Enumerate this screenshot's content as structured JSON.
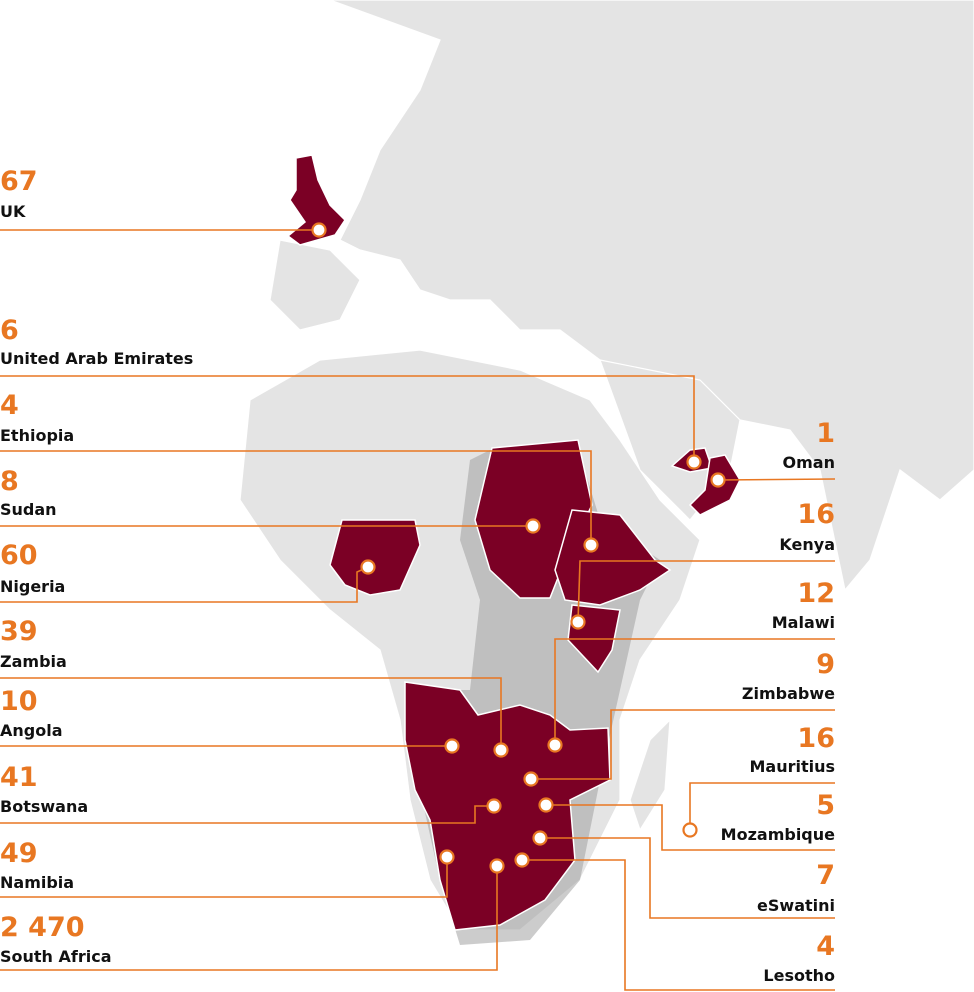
{
  "locations": [
    {
      "name": "UK",
      "count": 67
    },
    {
      "name": "United Arab Emirates",
      "count": 6
    },
    {
      "name": "Ethiopia",
      "count": 4
    },
    {
      "name": "Sudan",
      "count": 8
    },
    {
      "name": "Nigeria",
      "count": 60
    },
    {
      "name": "Zambia",
      "count": 39
    },
    {
      "name": "Angola",
      "count": 10
    },
    {
      "name": "Botswana",
      "count": 41
    },
    {
      "name": "Namibia",
      "count": 49
    },
    {
      "name": "South Africa",
      "count": 2470,
      "count_label": "2 470"
    },
    {
      "name": "Oman",
      "count": 1
    },
    {
      "name": "Kenya",
      "count": 16
    },
    {
      "name": "Malawi",
      "count": 12
    },
    {
      "name": "Zimbabwe",
      "count": 9
    },
    {
      "name": "Mauritius",
      "count": 16
    },
    {
      "name": "Mozambique",
      "count": 5
    },
    {
      "name": "eSwatini",
      "count": 7
    },
    {
      "name": "Lesotho",
      "count": 4
    }
  ]
}
